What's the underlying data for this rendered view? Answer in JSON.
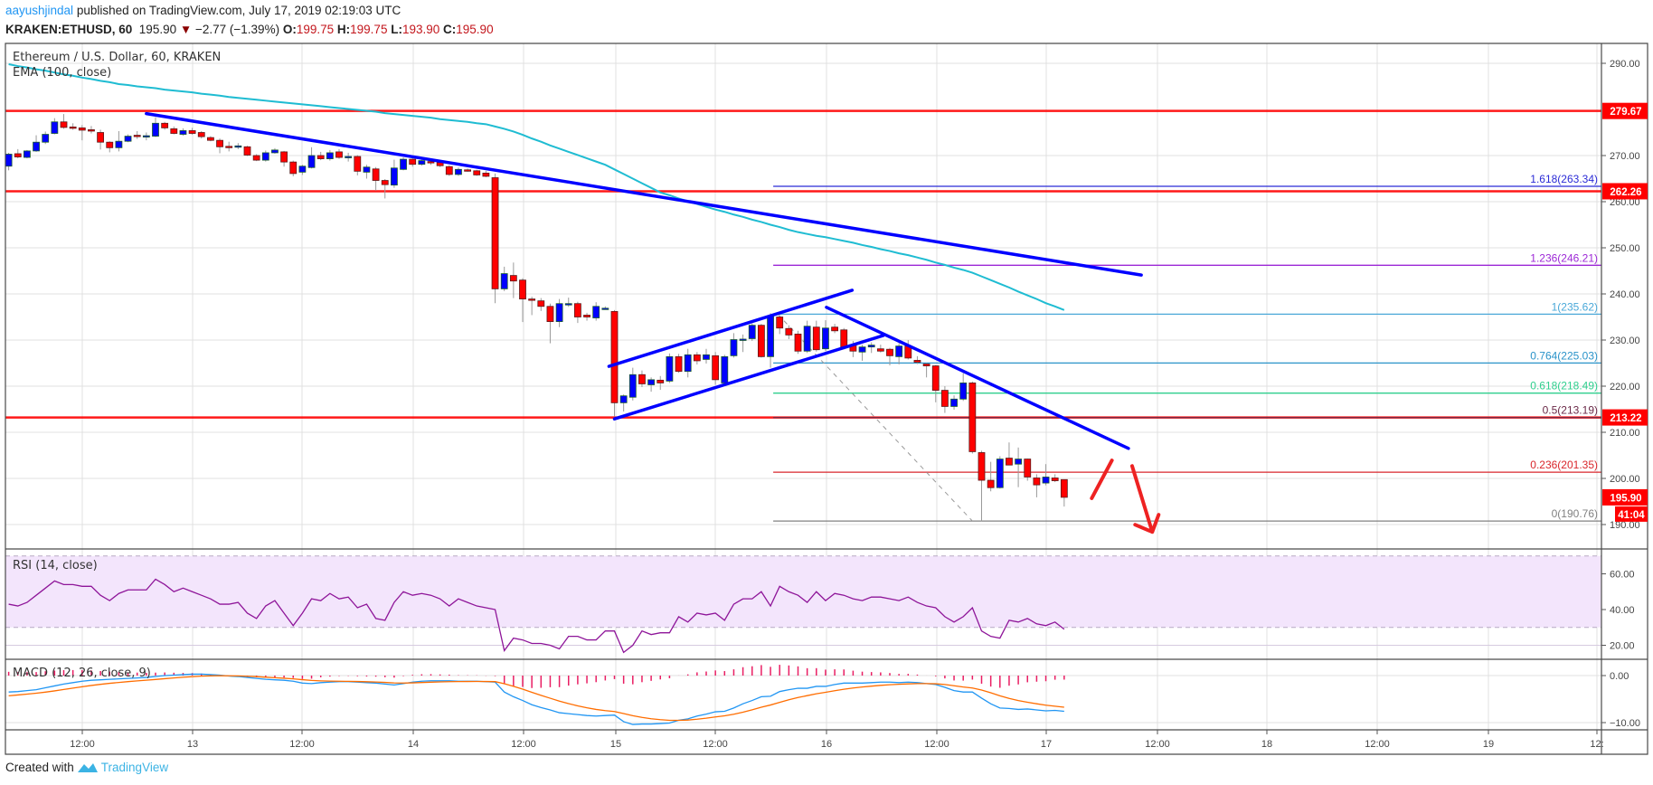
{
  "header": {
    "author": "aayushjindal",
    "published": " published on TradingView.com, July 17, 2019 02:19:03 UTC",
    "symbol": "KRAKEN:ETHUSD, 60",
    "last": "195.90",
    "change": "−2.77 (−1.39%)",
    "o_label": "O:",
    "o": "199.75",
    "h_label": "H:",
    "h": "199.75",
    "l_label": "L:",
    "l": "193.90",
    "c_label": "C:",
    "c": "195.90"
  },
  "legend": {
    "main": "Ethereum / U.S. Dollar, 60, KRAKEN",
    "ema": "EMA (100, close)",
    "rsi": "RSI (14, close)",
    "macd": "MACD (12, 26, close, 9)"
  },
  "footer": {
    "created": "Created with",
    "brand": "TradingView",
    "logo_icon": "tradingview-logo-icon"
  },
  "colors": {
    "up": "#0000ff",
    "down": "#ff0000",
    "ema": "#1fbcd2",
    "rsi": "#8e1599",
    "rsi_band": "#f3e5fc",
    "macd": "#2196f3",
    "signal": "#ff6d00",
    "hist": "#e91e63",
    "hline": "#ff0000",
    "trend": "#0000ff",
    "tag": "#ff0000"
  },
  "chart_data": [
    {
      "type": "candlestick",
      "title": "Ethereum / U.S. Dollar, 60, KRAKEN",
      "ylim": [
        184.7,
        294.3
      ],
      "grid": true,
      "y_ticks": [
        "290.00",
        "270.00",
        "260.00",
        "250.00",
        "240.00",
        "230.00",
        "220.00",
        "210.00",
        "200.00",
        "190.00"
      ],
      "x_ticks": [
        "12:00",
        "13",
        "12:00",
        "14",
        "12:00",
        "15",
        "12:00",
        "16",
        "12:00",
        "17",
        "12:00",
        "18",
        "12:00",
        "19",
        "12:"
      ],
      "candles_ohlc": [
        [
          267.7,
          270.6,
          266.8,
          270.3
        ],
        [
          270.4,
          271.4,
          269.4,
          269.7
        ],
        [
          269.6,
          271.2,
          269.4,
          271.0
        ],
        [
          271.0,
          274.4,
          270.8,
          272.9
        ],
        [
          272.9,
          275.2,
          272.5,
          274.6
        ],
        [
          274.8,
          278.1,
          274.6,
          277.3
        ],
        [
          277.3,
          279.0,
          275.8,
          276.1
        ],
        [
          276.2,
          277.0,
          275.6,
          275.9
        ],
        [
          276.0,
          276.6,
          273.3,
          275.5
        ],
        [
          275.6,
          276.4,
          274.8,
          275.3
        ],
        [
          275.0,
          275.6,
          271.3,
          272.9
        ],
        [
          272.9,
          273.1,
          270.7,
          271.7
        ],
        [
          271.7,
          275.3,
          270.9,
          273.1
        ],
        [
          273.1,
          274.6,
          272.9,
          274.2
        ],
        [
          274.4,
          275.3,
          273.6,
          274.2
        ],
        [
          274.2,
          275.0,
          273.3,
          274.3
        ],
        [
          274.2,
          278.3,
          274.0,
          277.0
        ],
        [
          277.0,
          277.3,
          275.6,
          276.0
        ],
        [
          275.8,
          276.3,
          274.6,
          274.8
        ],
        [
          274.6,
          275.9,
          274.3,
          275.4
        ],
        [
          275.4,
          276.0,
          274.5,
          274.8
        ],
        [
          275.0,
          275.3,
          273.7,
          274.1
        ],
        [
          273.9,
          274.2,
          273.1,
          273.3
        ],
        [
          273.3,
          273.7,
          270.5,
          271.9
        ],
        [
          272.0,
          273.0,
          270.9,
          271.7
        ],
        [
          271.9,
          272.7,
          271.4,
          272.1
        ],
        [
          271.9,
          272.1,
          269.9,
          270.1
        ],
        [
          270.0,
          270.3,
          268.8,
          269.0
        ],
        [
          269.0,
          271.1,
          268.7,
          270.6
        ],
        [
          270.6,
          271.6,
          270.4,
          271.2
        ],
        [
          270.8,
          271.0,
          267.6,
          268.6
        ],
        [
          268.6,
          268.9,
          265.5,
          266.1
        ],
        [
          266.4,
          268.0,
          265.8,
          267.7
        ],
        [
          267.4,
          271.8,
          267.2,
          270.0
        ],
        [
          270.0,
          270.8,
          269.0,
          269.3
        ],
        [
          269.3,
          271.2,
          268.9,
          270.6
        ],
        [
          270.8,
          271.4,
          269.3,
          269.6
        ],
        [
          269.8,
          270.6,
          268.7,
          269.8
        ],
        [
          269.8,
          270.1,
          265.7,
          266.6
        ],
        [
          266.4,
          268.0,
          265.0,
          267.5
        ],
        [
          267.1,
          267.5,
          262.4,
          264.6
        ],
        [
          264.6,
          264.9,
          260.7,
          263.7
        ],
        [
          263.6,
          269.1,
          263.0,
          267.3
        ],
        [
          267.0,
          269.6,
          266.8,
          269.2
        ],
        [
          269.2,
          269.4,
          267.6,
          268.1
        ],
        [
          268.1,
          269.3,
          267.8,
          268.9
        ],
        [
          268.7,
          269.0,
          268.0,
          268.4
        ],
        [
          268.5,
          268.8,
          267.5,
          267.8
        ],
        [
          267.6,
          267.9,
          265.6,
          265.9
        ],
        [
          265.9,
          267.4,
          265.6,
          267.0
        ],
        [
          266.9,
          267.2,
          266.5,
          266.7
        ],
        [
          266.7,
          266.9,
          265.6,
          265.8
        ],
        [
          266.2,
          266.7,
          265.3,
          265.5
        ],
        [
          265.2,
          266.1,
          238.0,
          241.1
        ],
        [
          241.1,
          245.9,
          240.6,
          244.4
        ],
        [
          244.0,
          246.8,
          239.1,
          242.8
        ],
        [
          243.0,
          243.4,
          233.9,
          238.9
        ],
        [
          238.9,
          239.4,
          235.4,
          238.7
        ],
        [
          238.5,
          239.1,
          236.3,
          237.3
        ],
        [
          237.3,
          237.9,
          229.3,
          234.0
        ],
        [
          234.0,
          238.9,
          232.8,
          237.9
        ],
        [
          237.9,
          239.2,
          237.2,
          237.9
        ],
        [
          237.9,
          238.3,
          233.7,
          235.0
        ],
        [
          235.4,
          235.9,
          234.2,
          235.0
        ],
        [
          234.8,
          238.2,
          234.2,
          237.3
        ],
        [
          236.9,
          237.3,
          236.6,
          236.9
        ],
        [
          236.2,
          236.5,
          213.4,
          216.4
        ],
        [
          216.4,
          218.2,
          214.5,
          217.9
        ],
        [
          217.6,
          224.0,
          216.9,
          222.5
        ],
        [
          222.5,
          223.4,
          219.8,
          220.5
        ],
        [
          220.3,
          221.9,
          218.8,
          221.4
        ],
        [
          221.3,
          222.2,
          219.2,
          220.7
        ],
        [
          221.1,
          227.1,
          220.7,
          226.4
        ],
        [
          226.4,
          227.0,
          222.9,
          223.2
        ],
        [
          223.2,
          228.1,
          221.9,
          226.8
        ],
        [
          226.8,
          227.4,
          224.7,
          225.5
        ],
        [
          225.8,
          228.1,
          224.9,
          226.8
        ],
        [
          226.6,
          227.4,
          220.3,
          221.4
        ],
        [
          220.7,
          226.8,
          220.3,
          226.4
        ],
        [
          226.6,
          231.5,
          226.2,
          230.1
        ],
        [
          230.1,
          231.2,
          227.4,
          230.2
        ],
        [
          230.3,
          233.6,
          229.8,
          233.2
        ],
        [
          233.2,
          233.5,
          226.2,
          226.4
        ],
        [
          226.4,
          235.8,
          224.0,
          235.1
        ],
        [
          235.0,
          235.4,
          231.3,
          232.6
        ],
        [
          232.5,
          233.2,
          230.2,
          231.1
        ],
        [
          231.3,
          232.0,
          227.0,
          227.6
        ],
        [
          227.6,
          234.2,
          227.2,
          233.0
        ],
        [
          232.8,
          234.2,
          227.5,
          227.9
        ],
        [
          228.1,
          234.3,
          227.6,
          232.6
        ],
        [
          232.8,
          233.5,
          231.5,
          232.0
        ],
        [
          232.2,
          232.6,
          228.0,
          228.5
        ],
        [
          229.0,
          229.8,
          226.3,
          227.6
        ],
        [
          227.4,
          229.0,
          225.5,
          228.5
        ],
        [
          228.5,
          229.5,
          227.2,
          228.9
        ],
        [
          228.1,
          229.0,
          227.3,
          227.6
        ],
        [
          228.0,
          228.3,
          224.5,
          226.6
        ],
        [
          226.4,
          229.3,
          224.7,
          228.7
        ],
        [
          228.7,
          230.0,
          225.8,
          226.1
        ],
        [
          225.6,
          226.5,
          224.8,
          225.2
        ],
        [
          224.8,
          225.0,
          221.9,
          224.4
        ],
        [
          224.4,
          224.6,
          216.5,
          219.1
        ],
        [
          219.1,
          220.0,
          214.2,
          215.6
        ],
        [
          215.6,
          218.0,
          214.9,
          217.2
        ],
        [
          217.2,
          222.8,
          216.8,
          220.7
        ],
        [
          220.7,
          221.0,
          205.4,
          205.8
        ],
        [
          205.6,
          206.0,
          190.7,
          199.6
        ],
        [
          199.6,
          203.6,
          197.2,
          198.0
        ],
        [
          198.0,
          204.8,
          197.8,
          204.2
        ],
        [
          204.4,
          207.8,
          203.5,
          202.9
        ],
        [
          203.1,
          206.7,
          198.1,
          204.2
        ],
        [
          204.2,
          204.3,
          199.5,
          200.3
        ],
        [
          200.1,
          200.9,
          195.9,
          198.6
        ],
        [
          199.0,
          203.1,
          198.5,
          200.3
        ],
        [
          200.1,
          200.9,
          199.2,
          199.5
        ],
        [
          199.75,
          199.75,
          193.9,
          195.9
        ]
      ],
      "ema100": [
        289.8,
        289.4,
        289.1,
        288.7,
        288.4,
        288.0,
        287.6,
        287.3,
        286.9,
        286.6,
        286.2,
        285.9,
        285.5,
        285.3,
        285.0,
        284.8,
        284.6,
        284.3,
        284.1,
        283.9,
        283.7,
        283.4,
        283.2,
        283.0,
        282.7,
        282.5,
        282.3,
        282.1,
        281.9,
        281.7,
        281.5,
        281.3,
        281.1,
        280.9,
        280.7,
        280.5,
        280.3,
        280.1,
        279.9,
        279.7,
        279.5,
        279.2,
        279.0,
        278.8,
        278.6,
        278.4,
        278.2,
        277.9,
        277.7,
        277.5,
        277.3,
        277.0,
        276.8,
        276.3,
        275.8,
        275.2,
        274.5,
        273.7,
        273.0,
        272.2,
        271.5,
        270.8,
        270.1,
        269.4,
        268.7,
        268.0,
        267.0,
        266.0,
        265.0,
        264.0,
        263.0,
        262.0,
        261.4,
        260.7,
        260.1,
        259.5,
        258.9,
        258.3,
        257.8,
        257.2,
        256.7,
        256.1,
        255.6,
        255.0,
        254.5,
        253.9,
        253.4,
        253.0,
        252.6,
        252.3,
        251.9,
        251.5,
        251.1,
        250.6,
        250.2,
        249.7,
        249.3,
        248.8,
        248.4,
        247.9,
        247.4,
        246.8,
        246.3,
        245.7,
        245.2,
        244.6,
        243.8,
        243.0,
        242.2,
        241.4,
        240.5,
        239.7,
        238.9,
        238.0,
        237.3,
        236.5
      ],
      "horizontal_levels": [
        {
          "price": 279.67,
          "label": "279.67"
        },
        {
          "price": 262.26,
          "label": "262.26"
        },
        {
          "price": 213.22,
          "label": "213.22"
        }
      ],
      "last_price_tag": {
        "price": 195.9,
        "label": "195.90",
        "countdown": "41:04"
      },
      "fib_levels": [
        {
          "price": 263.34,
          "label": "1.618(263.34)",
          "color": "#2a2ad6"
        },
        {
          "price": 246.21,
          "label": "1.236(246.21)",
          "color": "#9c27d6"
        },
        {
          "price": 235.62,
          "label": "1(235.62)",
          "color": "#4aa8d8"
        },
        {
          "price": 225.03,
          "label": "0.764(225.03)",
          "color": "#2a93c9"
        },
        {
          "price": 218.49,
          "label": "0.618(218.49)",
          "color": "#2fcf8e"
        },
        {
          "price": 213.19,
          "label": "0.5(213.19)",
          "color": "#6b2a48"
        },
        {
          "price": 201.35,
          "label": "0.236(201.35)",
          "color": "#d9262b"
        },
        {
          "price": 190.76,
          "label": "0(190.76)",
          "color": "#808080"
        }
      ],
      "trendlines": [
        {
          "name": "main-downtrend",
          "from": [
            15.0,
            279.1
          ],
          "to": [
            123.4,
            244.1
          ]
        },
        {
          "name": "channel-upper",
          "from": [
            65.4,
            224.3
          ],
          "to": [
            91.9,
            240.8
          ]
        },
        {
          "name": "channel-lower",
          "from": [
            66.0,
            212.9
          ],
          "to": [
            95.3,
            231.0
          ]
        },
        {
          "name": "descending-resistance",
          "from": [
            89.1,
            237.1
          ],
          "to": [
            122.0,
            206.5
          ]
        }
      ],
      "fib_start_bar": 83.3,
      "fib_trend_dashed": {
        "from": [
          83.8,
          235.6
        ],
        "to": [
          105.0,
          190.76
        ]
      },
      "arrows": {
        "up": {
          "from": [
            118.0,
            195.7
          ],
          "to": [
            120.2,
            203.9
          ]
        },
        "down": {
          "from": [
            122.4,
            202.7
          ],
          "to": [
            124.6,
            188.4
          ]
        }
      }
    },
    {
      "type": "line",
      "title": "RSI (14, close)",
      "ylim": [
        16,
        78
      ],
      "y_ticks": [
        "60.00",
        "40.00",
        "20.00"
      ],
      "band": [
        30,
        70
      ],
      "values": [
        43,
        42,
        44,
        48,
        52,
        56,
        54,
        54,
        53,
        53,
        48,
        45,
        49,
        51,
        51,
        51,
        57,
        54,
        50,
        52,
        50,
        48,
        46,
        43,
        43,
        44,
        38,
        35,
        42,
        45,
        38,
        31,
        38,
        46,
        45,
        49,
        46,
        47,
        41,
        43,
        35,
        34,
        44,
        50,
        48,
        49,
        48,
        46,
        42,
        46,
        44,
        42,
        41,
        40,
        17,
        24,
        23,
        21,
        21,
        20,
        18,
        25,
        25,
        23,
        23,
        28,
        28,
        16,
        20,
        28,
        26,
        27,
        27,
        36,
        33,
        38,
        37,
        38,
        34,
        43,
        46,
        46,
        50,
        42,
        53,
        50,
        48,
        44,
        50,
        45,
        49,
        48,
        46,
        45,
        47,
        47,
        46,
        45,
        47,
        44,
        42,
        41,
        36,
        33,
        36,
        41,
        28,
        25,
        24,
        34,
        33,
        35,
        32,
        31,
        33,
        29
      ]
    },
    {
      "type": "line",
      "title": "MACD (12, 26, close, 9)",
      "ylim": [
        -11.6,
        3.5
      ],
      "y_ticks": [
        "0.00",
        "−10.00"
      ],
      "macd": [
        -3.5,
        -3.4,
        -3.2,
        -3.0,
        -2.6,
        -2.2,
        -1.8,
        -1.5,
        -1.2,
        -1.0,
        -0.9,
        -0.8,
        -0.7,
        -0.6,
        -0.5,
        -0.4,
        -0.2,
        0.0,
        0.1,
        0.2,
        0.3,
        0.3,
        0.2,
        0.1,
        -0.1,
        -0.2,
        -0.4,
        -0.6,
        -0.8,
        -0.9,
        -1.0,
        -1.2,
        -1.6,
        -1.7,
        -1.5,
        -1.4,
        -1.3,
        -1.3,
        -1.4,
        -1.5,
        -1.6,
        -1.8,
        -2.0,
        -1.7,
        -1.4,
        -1.2,
        -1.1,
        -1.1,
        -1.1,
        -1.2,
        -1.2,
        -1.2,
        -1.3,
        -1.4,
        -3.5,
        -4.5,
        -5.3,
        -6.2,
        -6.8,
        -7.3,
        -7.9,
        -8.1,
        -8.3,
        -8.5,
        -8.6,
        -8.5,
        -8.4,
        -9.8,
        -10.4,
        -10.3,
        -10.3,
        -10.2,
        -10.1,
        -9.5,
        -9.2,
        -8.6,
        -8.2,
        -7.7,
        -7.6,
        -6.9,
        -6.0,
        -5.3,
        -4.5,
        -4.4,
        -3.4,
        -3.0,
        -2.7,
        -2.7,
        -2.3,
        -2.3,
        -1.9,
        -1.6,
        -1.6,
        -1.6,
        -1.5,
        -1.4,
        -1.4,
        -1.5,
        -1.4,
        -1.5,
        -1.7,
        -1.9,
        -2.5,
        -3.2,
        -3.5,
        -3.5,
        -4.8,
        -6.0,
        -6.9,
        -7.0,
        -7.2,
        -7.1,
        -7.3,
        -7.5,
        -7.4,
        -7.6
      ]
    }
  ]
}
